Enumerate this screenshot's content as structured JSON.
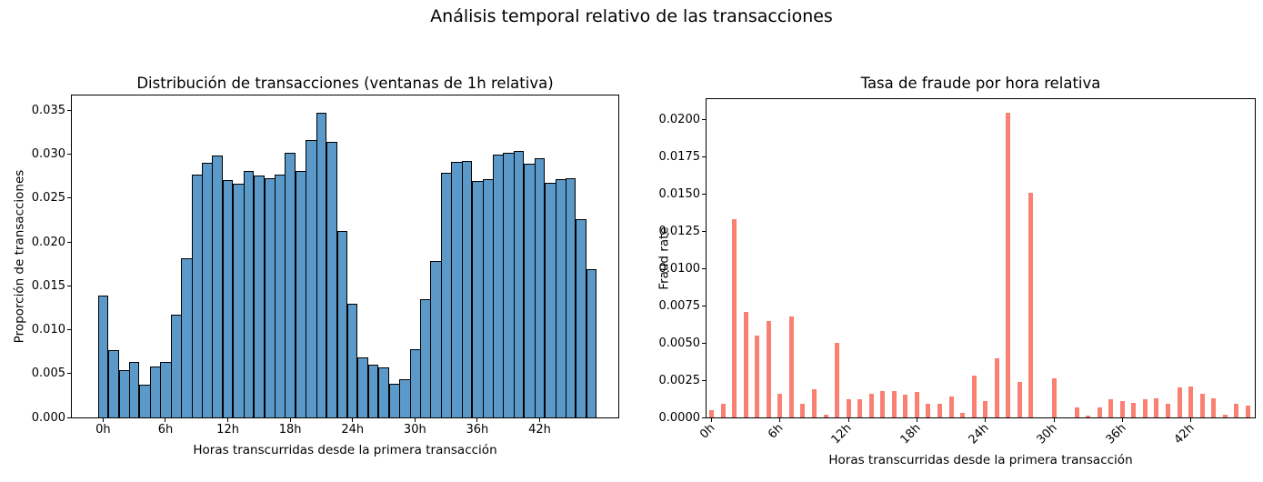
{
  "suptitle": "Análisis temporal relativo de las transacciones",
  "chart_data": [
    {
      "type": "bar",
      "bar_style": "histogram",
      "title": "Distribución de transacciones (ventanas de 1h relativa)",
      "xlabel": "Horas transcurridas desde la primera transacción",
      "ylabel": "Proporción de transacciones",
      "bar_color": "#5b99c9",
      "bar_edge_color": "#000000",
      "grid": false,
      "legend": null,
      "x_unit": "hour",
      "values": [
        0.0139,
        0.0077,
        0.0054,
        0.0063,
        0.0037,
        0.0058,
        0.0063,
        0.0117,
        0.0181,
        0.0277,
        0.029,
        0.0299,
        0.0271,
        0.0266,
        0.0281,
        0.0276,
        0.0273,
        0.0277,
        0.0302,
        0.0281,
        0.0316,
        0.0347,
        0.0314,
        0.0213,
        0.013,
        0.0068,
        0.006,
        0.0057,
        0.0038,
        0.0044,
        0.0078,
        0.0135,
        0.0178,
        0.0279,
        0.0291,
        0.0292,
        0.027,
        0.0272,
        0.03,
        0.0302,
        0.0304,
        0.0289,
        0.0296,
        0.0267,
        0.0272,
        0.0273,
        0.0226,
        0.0169
      ],
      "x_tick_hours": [
        0,
        6,
        12,
        18,
        24,
        30,
        36,
        42
      ],
      "x_tick_labels": [
        "0h",
        "6h",
        "12h",
        "18h",
        "24h",
        "30h",
        "36h",
        "42h"
      ],
      "x_tick_rotation": 0,
      "y_tick_values": [
        0.0,
        0.005,
        0.01,
        0.015,
        0.02,
        0.025,
        0.03,
        0.035
      ],
      "y_tick_labels": [
        "0.000",
        "0.005",
        "0.010",
        "0.015",
        "0.020",
        "0.025",
        "0.030",
        "0.035"
      ],
      "ylim": [
        0,
        0.0367
      ]
    },
    {
      "type": "bar",
      "bar_style": "thin",
      "title": "Tasa de fraude por hora relativa",
      "xlabel": "Horas transcurridas desde la primera transacción",
      "ylabel": "Fraud rate",
      "bar_color": "#fa8072",
      "bar_edge_color": null,
      "grid": false,
      "legend": null,
      "x_unit": "hour",
      "values": [
        0.0005,
        0.0009,
        0.0133,
        0.0071,
        0.0055,
        0.0065,
        0.0016,
        0.0068,
        0.0009,
        0.0019,
        0.0002,
        0.005,
        0.0012,
        0.0012,
        0.0016,
        0.0018,
        0.0018,
        0.0015,
        0.0017,
        0.0009,
        0.0009,
        0.0014,
        0.0003,
        0.0028,
        0.0011,
        0.004,
        0.0205,
        0.0024,
        0.0151,
        0.0,
        0.0026,
        0.0,
        0.0007,
        0.0001,
        0.0007,
        0.0012,
        0.0011,
        0.001,
        0.0012,
        0.0013,
        0.0009,
        0.002,
        0.0021,
        0.0016,
        0.0013,
        0.0002,
        0.0009,
        0.0008
      ],
      "x_tick_hours": [
        0,
        6,
        12,
        18,
        24,
        30,
        36,
        42
      ],
      "x_tick_labels": [
        "0h",
        "6h",
        "12h",
        "18h",
        "24h",
        "30h",
        "36h",
        "42h"
      ],
      "x_tick_rotation": -45,
      "y_tick_values": [
        0.0,
        0.0025,
        0.005,
        0.0075,
        0.01,
        0.0125,
        0.015,
        0.0175,
        0.02
      ],
      "y_tick_labels": [
        "0.0000",
        "0.0025",
        "0.0050",
        "0.0075",
        "0.0100",
        "0.0125",
        "0.0150",
        "0.0175",
        "0.0200"
      ],
      "ylim": [
        0,
        0.0214
      ]
    }
  ]
}
